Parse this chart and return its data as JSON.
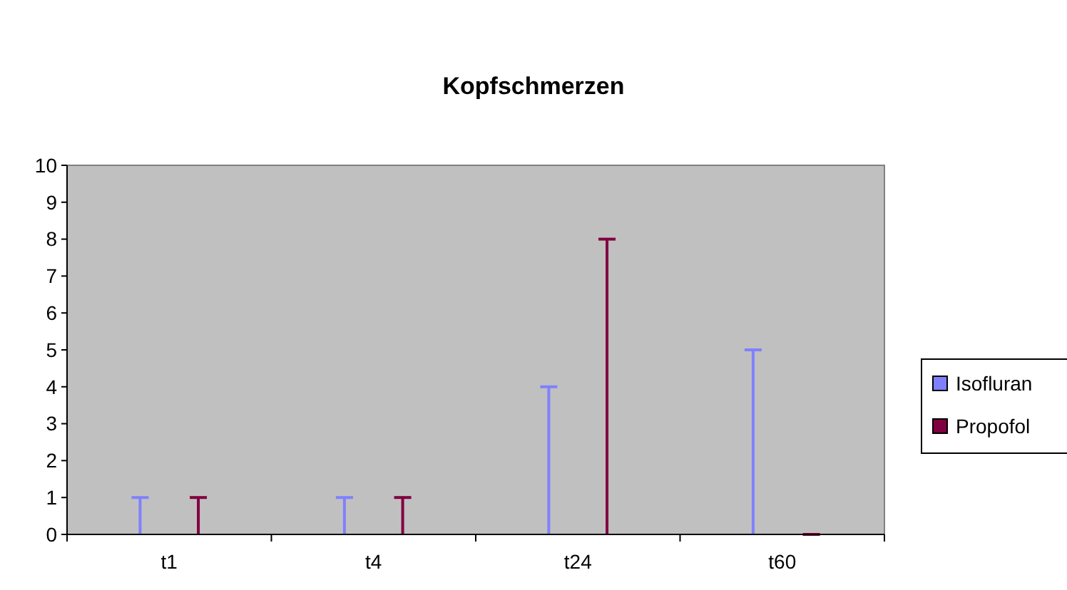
{
  "chart_data": {
    "type": "bar",
    "title": "Kopfschmerzen",
    "categories": [
      "t1",
      "t4",
      "t24",
      "t60"
    ],
    "series": [
      {
        "name": "Isofluran",
        "color": "#8080ff",
        "values": [
          1,
          1,
          4,
          5
        ]
      },
      {
        "name": "Propofol",
        "color": "#800040",
        "values": [
          1,
          1,
          8,
          0
        ]
      }
    ],
    "ylim": [
      0,
      10
    ],
    "yticks": [
      0,
      1,
      2,
      3,
      4,
      5,
      6,
      7,
      8,
      9,
      10
    ],
    "grid": false,
    "legend": "right"
  }
}
